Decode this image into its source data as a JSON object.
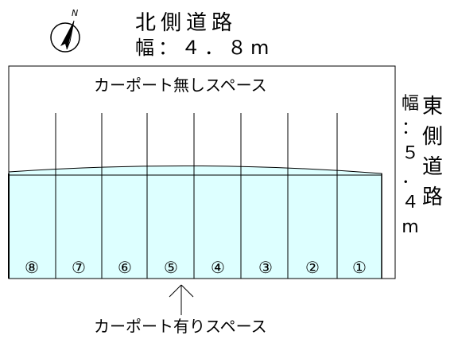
{
  "north_road": {
    "name": "北側道路",
    "width": "幅：４．８m"
  },
  "east_road": {
    "name": [
      "東",
      "側",
      "道",
      "路"
    ],
    "width": [
      "幅",
      "：",
      "５",
      "．",
      "４",
      "m"
    ]
  },
  "open_area_label": "カーポート無しスペース",
  "covered_area_label": "カーポート有りスペース",
  "compass_letter": "N",
  "slots": [
    "⑧",
    "⑦",
    "⑥",
    "⑤",
    "④",
    "③",
    "②",
    "①"
  ],
  "colors": {
    "carport": "#ddffff",
    "line": "#000000"
  },
  "icons": {
    "compass": "north-arrow-icon",
    "pointer": "up-arrow-icon"
  }
}
